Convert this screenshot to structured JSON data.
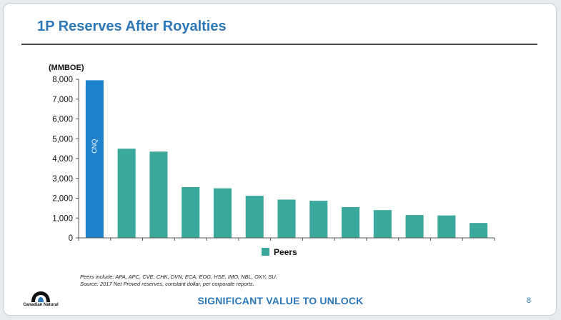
{
  "slide": {
    "title": "1P Reserves After Royalties",
    "footer": "SIGNIFICANT VALUE TO UNLOCK",
    "page_number": "8",
    "footnote_line1": "Peers include: APA, APC, CVE, CHK, DVN, ECA, EOG, HSE, IMO, NBL, OXY, SU.",
    "footnote_line2": "Source: 2017 Net Proved reserves, constant dollar, per corporate reports.",
    "logo_text": "Canadian Natural"
  },
  "colors": {
    "title": "#2b77b8",
    "cnq_bar": "#1f82cc",
    "peer_bar": "#3aa89a",
    "axis": "#555555"
  },
  "chart_data": {
    "type": "bar",
    "ylabel": "(MMBOE)",
    "ylim": [
      0,
      8000
    ],
    "yticks": [
      "0",
      "1,000",
      "2,000",
      "3,000",
      "4,000",
      "5,000",
      "6,000",
      "7,000",
      "8,000"
    ],
    "categories": [
      "CNQ",
      "",
      "",
      "",
      "",
      "",
      "",
      "",
      "",
      "",
      "",
      "",
      ""
    ],
    "values": [
      7950,
      4500,
      4350,
      2560,
      2500,
      2120,
      1930,
      1870,
      1550,
      1400,
      1150,
      1130,
      750
    ],
    "highlight_label": "CNQ",
    "legend": [
      {
        "name": "Peers",
        "color": "#3aa89a"
      }
    ],
    "grid": false,
    "legend_position": "bottom-center"
  }
}
